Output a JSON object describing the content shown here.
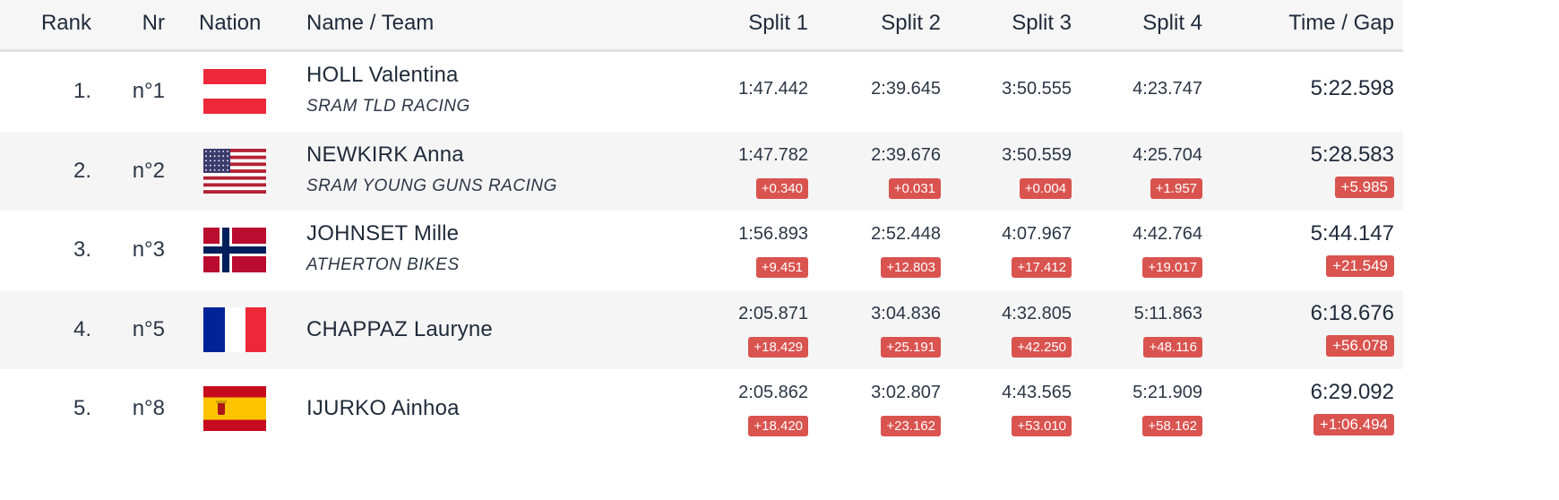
{
  "header": {
    "rank": "Rank",
    "nr": "Nr",
    "nation": "Nation",
    "name_team": "Name / Team",
    "split1": "Split 1",
    "split2": "Split 2",
    "split3": "Split 3",
    "split4": "Split 4",
    "time_gap": "Time / Gap"
  },
  "rows": [
    {
      "rank": "1.",
      "nr": "n°1",
      "nation": "austria-flag",
      "name": "HOLL Valentina",
      "team": "SRAM TLD RACING",
      "splits": [
        "1:47.442",
        "2:39.645",
        "3:50.555",
        "4:23.747"
      ],
      "gaps": [
        "",
        "",
        "",
        ""
      ],
      "time": "5:22.598",
      "gap": ""
    },
    {
      "rank": "2.",
      "nr": "n°2",
      "nation": "usa-flag",
      "name": "NEWKIRK Anna",
      "team": "SRAM YOUNG GUNS RACING",
      "splits": [
        "1:47.782",
        "2:39.676",
        "3:50.559",
        "4:25.704"
      ],
      "gaps": [
        "+0.340",
        "+0.031",
        "+0.004",
        "+1.957"
      ],
      "time": "5:28.583",
      "gap": "+5.985"
    },
    {
      "rank": "3.",
      "nr": "n°3",
      "nation": "norway-flag",
      "name": "JOHNSET Mille",
      "team": "ATHERTON BIKES",
      "splits": [
        "1:56.893",
        "2:52.448",
        "4:07.967",
        "4:42.764"
      ],
      "gaps": [
        "+9.451",
        "+12.803",
        "+17.412",
        "+19.017"
      ],
      "time": "5:44.147",
      "gap": "+21.549"
    },
    {
      "rank": "4.",
      "nr": "n°5",
      "nation": "france-flag",
      "name": "CHAPPAZ Lauryne",
      "team": "",
      "splits": [
        "2:05.871",
        "3:04.836",
        "4:32.805",
        "5:11.863"
      ],
      "gaps": [
        "+18.429",
        "+25.191",
        "+42.250",
        "+48.116"
      ],
      "time": "6:18.676",
      "gap": "+56.078"
    },
    {
      "rank": "5.",
      "nr": "n°8",
      "nation": "spain-flag",
      "name": "IJURKO Ainhoa",
      "team": "",
      "splits": [
        "2:05.862",
        "3:02.807",
        "4:43.565",
        "5:21.909"
      ],
      "gaps": [
        "+18.420",
        "+23.162",
        "+53.010",
        "+58.162"
      ],
      "time": "6:29.092",
      "gap": "+1:06.494"
    }
  ],
  "colors": {
    "gap_badge": "#d9534f",
    "header_bg": "#f6f6f6",
    "stripe_bg": "#f5f5f5",
    "text": "#1f2a3a"
  }
}
